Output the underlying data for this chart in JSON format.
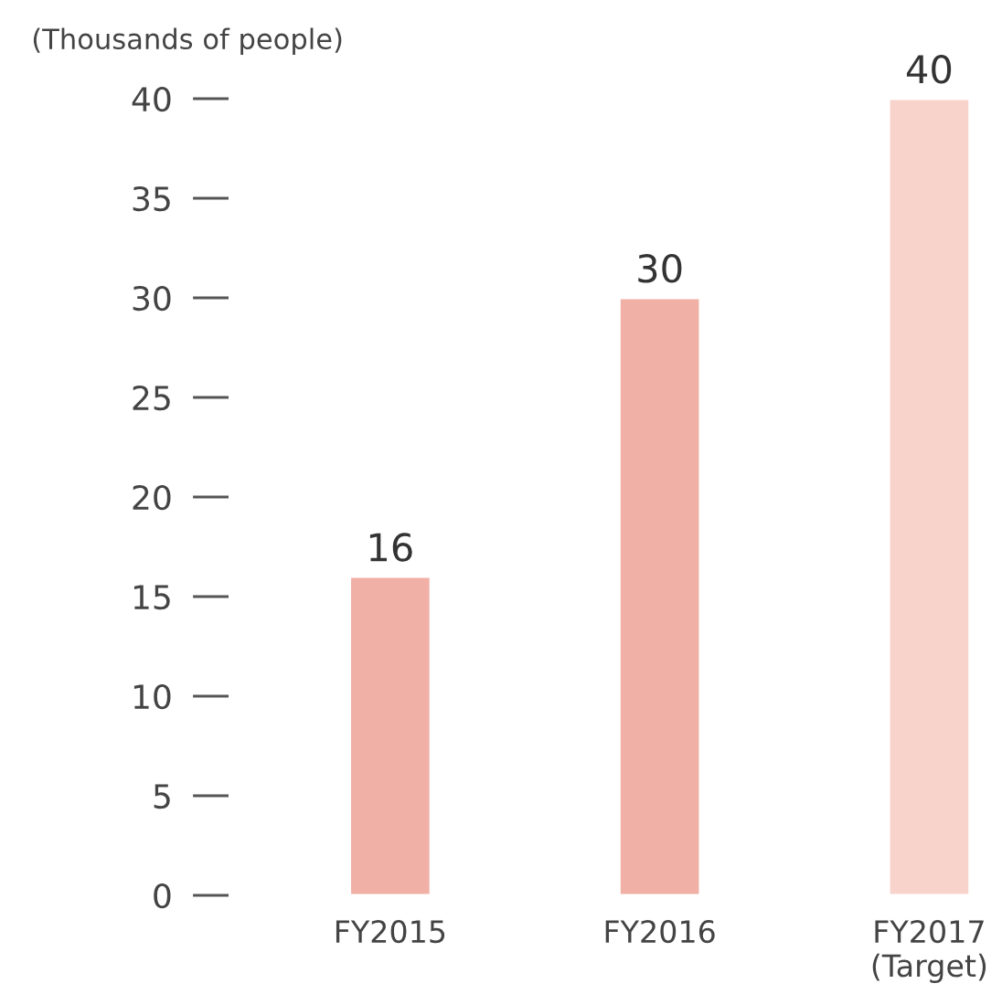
{
  "chart_data": {
    "type": "bar",
    "ylabel": "(Thousands of people)",
    "categories": [
      "FY2015",
      "FY2016",
      "FY2017\n(Target)"
    ],
    "values": [
      16,
      30,
      40
    ],
    "colors": [
      "#f0b0a6",
      "#f0b0a6",
      "#f7d3cc"
    ],
    "ylim": [
      0,
      40
    ],
    "yticks": [
      0,
      5,
      10,
      15,
      20,
      25,
      30,
      35,
      40
    ],
    "grid": false,
    "data_labels": true
  }
}
